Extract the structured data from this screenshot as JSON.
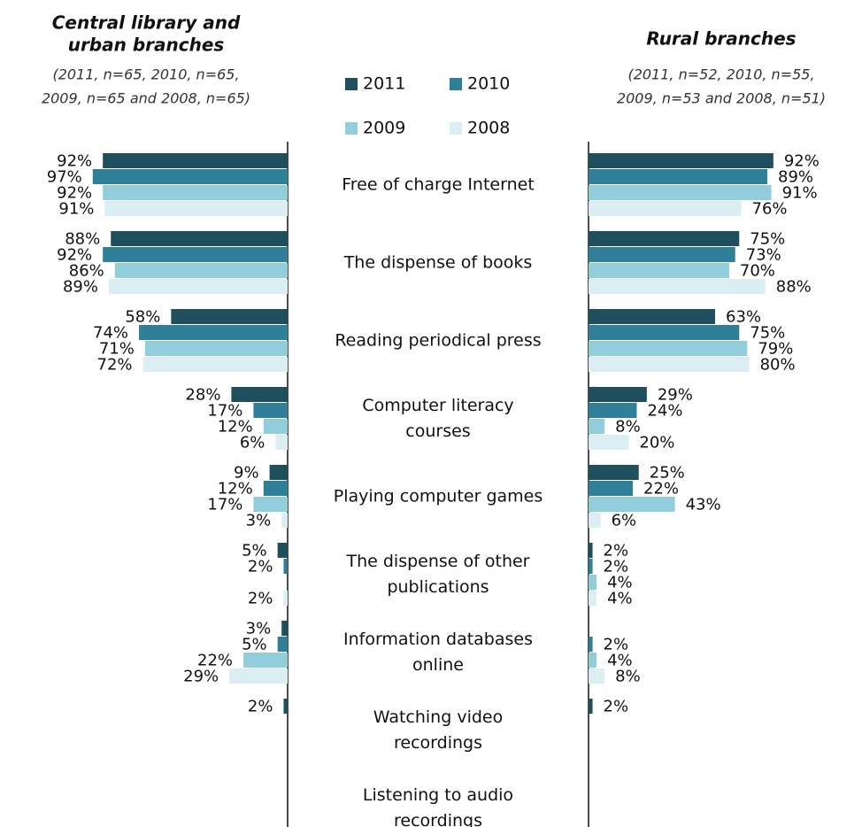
{
  "chart_data": {
    "type": "bar",
    "categories": [
      [
        "Free of charge Internet"
      ],
      [
        "The dispense of books"
      ],
      [
        "Reading periodical press"
      ],
      [
        "Computer literacy",
        "courses"
      ],
      [
        "Playing computer games"
      ],
      [
        "The dispense of other",
        "publications"
      ],
      [
        "Information databases",
        "online"
      ],
      [
        "Watching video",
        "recordings"
      ],
      [
        "Listening to audio",
        "recordings"
      ]
    ],
    "series": [
      {
        "name": "2011",
        "color": "#1f4e5f"
      },
      {
        "name": "2010",
        "color": "#2e7f97"
      },
      {
        "name": "2009",
        "color": "#92cddc"
      },
      {
        "name": "2008",
        "color": "#dbeef4"
      }
    ],
    "panels": [
      {
        "title": [
          "Central library and",
          "urban branches"
        ],
        "subtitle": [
          "(2011, n=65, 2010, n=65,",
          "2009, n=65 and 2008, n=65)"
        ],
        "series": [
          {
            "values": [
              92,
              88,
              58,
              28,
              9,
              5,
              3,
              2,
              null
            ],
            "value_labels": [
              "92%",
              "88%",
              "58%",
              "28%",
              "9%",
              "5%",
              "3%",
              "2%",
              null
            ]
          },
          {
            "values": [
              97,
              92,
              74,
              17,
              12,
              2,
              5,
              null,
              null
            ],
            "value_labels": [
              "97%",
              "92%",
              "74%",
              "17%",
              "12%",
              "2%",
              "5%",
              null,
              null
            ]
          },
          {
            "values": [
              92,
              86,
              71,
              12,
              17,
              null,
              22,
              null,
              null
            ],
            "value_labels": [
              "92%",
              "86%",
              "71%",
              "12%",
              "17%",
              null,
              "22%",
              null,
              null
            ]
          },
          {
            "values": [
              91,
              89,
              72,
              6,
              3,
              2,
              29,
              null,
              null
            ],
            "value_labels": [
              "91%",
              "89%",
              "72%",
              "6%",
              "3%",
              "2%",
              "29%",
              null,
              null
            ]
          }
        ]
      },
      {
        "title": [
          "Rural branches"
        ],
        "subtitle": [
          "(2011, n=52, 2010, n=55,",
          "2009, n=53 and 2008, n=51)"
        ],
        "series": [
          {
            "values": [
              92,
              75,
              63,
              29,
              25,
              2,
              null,
              2,
              null
            ],
            "value_labels": [
              "92%",
              "75%",
              "63%",
              "29%",
              "25%",
              "2%",
              null,
              "2%",
              null
            ]
          },
          {
            "values": [
              89,
              73,
              75,
              24,
              22,
              2,
              2,
              null,
              null
            ],
            "value_labels": [
              "89%",
              "73%",
              "75%",
              "24%",
              "22%",
              "2%",
              "2%",
              null,
              null
            ]
          },
          {
            "values": [
              91,
              70,
              79,
              8,
              43,
              4,
              4,
              null,
              null
            ],
            "value_labels": [
              "91%",
              "70%",
              "79%",
              "8%",
              "43%",
              "4%",
              "4%",
              null,
              null
            ]
          },
          {
            "values": [
              76,
              88,
              80,
              20,
              6,
              4,
              8,
              null,
              null
            ],
            "value_labels": [
              "76%",
              "88%",
              "80%",
              "20%",
              "6%",
              "4%",
              "8%",
              null,
              null
            ]
          }
        ]
      }
    ]
  }
}
